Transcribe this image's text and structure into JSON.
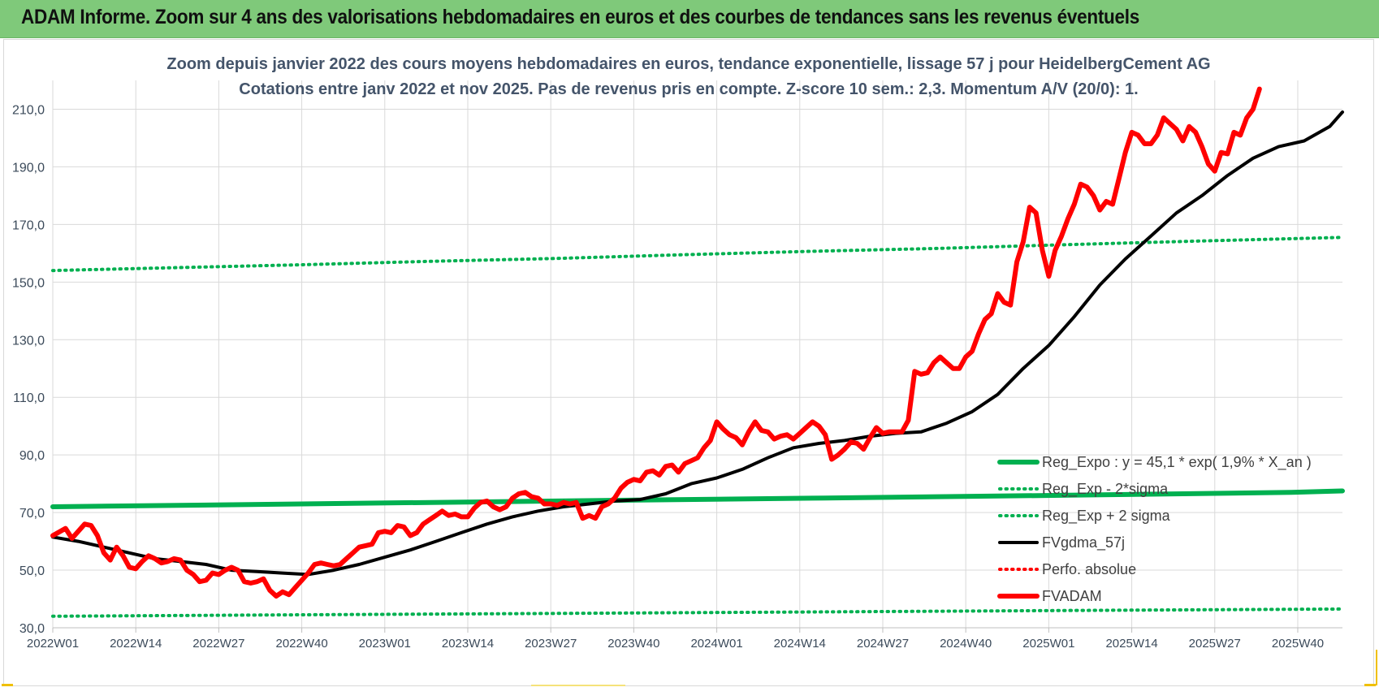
{
  "banner": {
    "title": "ADAM Informe. Zoom sur 4 ans des valorisations hebdomadaires en euros et des courbes de tendances sans les revenus éventuels"
  },
  "chart_data": {
    "type": "line",
    "title": "Zoom depuis janvier 2022 des cours moyens hebdomadaires en euros, tendance exponentielle, lissage 57 j pour HeidelbergCement AG",
    "subtitle": "Cotations entre janv 2022 et nov 2025. Pas de revenus pris en compte. Z-score 10 sem.: 2,3. Momentum A/V (20/0): 1.",
    "xlabel": "",
    "ylabel": "",
    "ylim": [
      30,
      220
    ],
    "x_range": [
      1,
      203
    ],
    "y_ticks": [
      "30,0",
      "50,0",
      "70,0",
      "90,0",
      "110,0",
      "130,0",
      "150,0",
      "170,0",
      "190,0",
      "210,0"
    ],
    "y_tick_values": [
      30,
      50,
      70,
      90,
      110,
      130,
      150,
      170,
      190,
      210
    ],
    "x_ticks": [
      "2022W01",
      "2022W14",
      "2022W27",
      "2022W40",
      "2023W01",
      "2023W14",
      "2023W27",
      "2023W40",
      "2024W01",
      "2024W14",
      "2024W27",
      "2024W40",
      "2025W01",
      "2025W14",
      "2025W27",
      "2025W40"
    ],
    "x_tick_weeks": [
      1,
      14,
      27,
      40,
      53,
      66,
      79,
      92,
      105,
      118,
      131,
      144,
      157,
      170,
      183,
      196
    ],
    "grid": "vertical and horizontal",
    "legend_position": "bottom-right",
    "series": [
      {
        "name": "Reg_Expo : y = 45,1 * exp( 1,9% * X_an )",
        "color": "#00b050",
        "style": "solid-thick",
        "points": [
          [
            1,
            72
          ],
          [
            40,
            73
          ],
          [
            80,
            74
          ],
          [
            120,
            75
          ],
          [
            160,
            76
          ],
          [
            195,
            77
          ],
          [
            203,
            77.5
          ]
        ]
      },
      {
        "name": "Reg_Exp - 2*sigma",
        "color": "#00b050",
        "style": "dotted",
        "points": [
          [
            1,
            34
          ],
          [
            40,
            34.5
          ],
          [
            80,
            35
          ],
          [
            120,
            35.5
          ],
          [
            160,
            36
          ],
          [
            203,
            36.5
          ]
        ]
      },
      {
        "name": "Reg_Exp + 2 sigma",
        "color": "#00b050",
        "style": "dotted",
        "points": [
          [
            1,
            154
          ],
          [
            20,
            155
          ],
          [
            40,
            156
          ],
          [
            60,
            157.2
          ],
          [
            80,
            158.2
          ],
          [
            100,
            159.5
          ],
          [
            120,
            160.7
          ],
          [
            140,
            161.7
          ],
          [
            160,
            163
          ],
          [
            180,
            164.2
          ],
          [
            203,
            165.5
          ]
        ]
      },
      {
        "name": "FVgdma_57j",
        "color": "#000000",
        "style": "solid",
        "points": [
          [
            1,
            61.5
          ],
          [
            5,
            60
          ],
          [
            9,
            58
          ],
          [
            13,
            56
          ],
          [
            17,
            54
          ],
          [
            21,
            53
          ],
          [
            25,
            52
          ],
          [
            29,
            50
          ],
          [
            33,
            49.5
          ],
          [
            37,
            49
          ],
          [
            41,
            48.5
          ],
          [
            45,
            50
          ],
          [
            49,
            52
          ],
          [
            53,
            54.5
          ],
          [
            57,
            57
          ],
          [
            61,
            60
          ],
          [
            65,
            63
          ],
          [
            69,
            66
          ],
          [
            73,
            68.5
          ],
          [
            77,
            70.5
          ],
          [
            81,
            72
          ],
          [
            85,
            73
          ],
          [
            89,
            74
          ],
          [
            93,
            74.5
          ],
          [
            97,
            76.5
          ],
          [
            101,
            80
          ],
          [
            105,
            82
          ],
          [
            109,
            85
          ],
          [
            113,
            89
          ],
          [
            117,
            92.5
          ],
          [
            121,
            94
          ],
          [
            125,
            95
          ],
          [
            129,
            96.5
          ],
          [
            133,
            97.5
          ],
          [
            137,
            98
          ],
          [
            141,
            101
          ],
          [
            145,
            105
          ],
          [
            149,
            111
          ],
          [
            153,
            120
          ],
          [
            157,
            128
          ],
          [
            161,
            138
          ],
          [
            165,
            149
          ],
          [
            169,
            158
          ],
          [
            173,
            166
          ],
          [
            177,
            174
          ],
          [
            181,
            180
          ],
          [
            185,
            187
          ],
          [
            189,
            193
          ],
          [
            193,
            197
          ],
          [
            197,
            199
          ],
          [
            201,
            204
          ],
          [
            203,
            209
          ]
        ]
      },
      {
        "name": "Perfo. absolue",
        "color": "#ff0000",
        "style": "dotted",
        "points": []
      },
      {
        "name": "FVADAM",
        "color": "#ff0000",
        "style": "solid-thick",
        "points": [
          [
            1,
            62
          ],
          [
            3,
            64.5
          ],
          [
            4,
            61
          ],
          [
            6,
            66
          ],
          [
            7,
            65.5
          ],
          [
            8,
            62
          ],
          [
            9,
            56
          ],
          [
            10,
            53.5
          ],
          [
            11,
            58
          ],
          [
            12,
            55
          ],
          [
            13,
            51
          ],
          [
            14,
            50.5
          ],
          [
            15,
            53
          ],
          [
            16,
            55
          ],
          [
            17,
            54
          ],
          [
            18,
            52.5
          ],
          [
            19,
            53
          ],
          [
            20,
            54
          ],
          [
            21,
            53.5
          ],
          [
            22,
            50
          ],
          [
            23,
            48.5
          ],
          [
            24,
            46
          ],
          [
            25,
            46.5
          ],
          [
            26,
            49
          ],
          [
            27,
            48.5
          ],
          [
            28,
            50
          ],
          [
            29,
            51
          ],
          [
            30,
            50
          ],
          [
            31,
            46
          ],
          [
            32,
            45.5
          ],
          [
            33,
            46
          ],
          [
            34,
            47
          ],
          [
            35,
            43
          ],
          [
            36,
            41
          ],
          [
            37,
            42.5
          ],
          [
            38,
            41.5
          ],
          [
            39,
            44
          ],
          [
            40,
            46.5
          ],
          [
            41,
            49
          ],
          [
            42,
            52
          ],
          [
            43,
            52.5
          ],
          [
            44,
            52
          ],
          [
            45,
            51.5
          ],
          [
            46,
            52
          ],
          [
            47,
            54
          ],
          [
            48,
            56
          ],
          [
            49,
            58
          ],
          [
            50,
            58.5
          ],
          [
            51,
            59
          ],
          [
            52,
            63
          ],
          [
            53,
            63.5
          ],
          [
            54,
            63
          ],
          [
            55,
            65.5
          ],
          [
            56,
            65
          ],
          [
            57,
            62
          ],
          [
            58,
            63
          ],
          [
            59,
            66
          ],
          [
            60,
            67.5
          ],
          [
            61,
            69
          ],
          [
            62,
            70.5
          ],
          [
            63,
            69
          ],
          [
            64,
            69.5
          ],
          [
            65,
            68.5
          ],
          [
            66,
            68.5
          ],
          [
            67,
            71.5
          ],
          [
            68,
            73.5
          ],
          [
            69,
            74
          ],
          [
            70,
            72
          ],
          [
            71,
            71
          ],
          [
            72,
            72
          ],
          [
            73,
            75
          ],
          [
            74,
            76.5
          ],
          [
            75,
            77
          ],
          [
            76,
            75.5
          ],
          [
            77,
            75
          ],
          [
            78,
            73
          ],
          [
            79,
            73
          ],
          [
            80,
            72.5
          ],
          [
            81,
            73.5
          ],
          [
            82,
            73
          ],
          [
            83,
            73.5
          ],
          [
            84,
            68
          ],
          [
            85,
            69
          ],
          [
            86,
            68
          ],
          [
            87,
            72
          ],
          [
            88,
            73
          ],
          [
            89,
            75
          ],
          [
            90,
            78.5
          ],
          [
            91,
            80.5
          ],
          [
            92,
            81.5
          ],
          [
            93,
            81
          ],
          [
            94,
            84
          ],
          [
            95,
            84.5
          ],
          [
            96,
            83
          ],
          [
            97,
            86
          ],
          [
            98,
            86.5
          ],
          [
            99,
            84
          ],
          [
            100,
            87
          ],
          [
            101,
            88
          ],
          [
            102,
            89
          ],
          [
            103,
            92.5
          ],
          [
            104,
            95
          ],
          [
            105,
            101.5
          ],
          [
            106,
            99
          ],
          [
            107,
            97
          ],
          [
            108,
            96
          ],
          [
            109,
            93.5
          ],
          [
            110,
            98
          ],
          [
            111,
            101.5
          ],
          [
            112,
            98.5
          ],
          [
            113,
            98
          ],
          [
            114,
            95.5
          ],
          [
            115,
            96.5
          ],
          [
            116,
            97
          ],
          [
            117,
            95.5
          ],
          [
            118,
            97.5
          ],
          [
            119,
            99.5
          ],
          [
            120,
            101.5
          ],
          [
            121,
            100
          ],
          [
            122,
            97
          ],
          [
            123,
            88.5
          ],
          [
            124,
            90
          ],
          [
            125,
            92
          ],
          [
            126,
            94.5
          ],
          [
            127,
            94
          ],
          [
            128,
            92
          ],
          [
            129,
            96
          ],
          [
            130,
            99.5
          ],
          [
            131,
            97.5
          ],
          [
            132,
            98
          ],
          [
            133,
            98
          ],
          [
            134,
            98
          ],
          [
            135,
            102
          ],
          [
            136,
            119
          ],
          [
            137,
            118
          ],
          [
            138,
            118.5
          ],
          [
            139,
            122
          ],
          [
            140,
            124
          ],
          [
            141,
            122
          ],
          [
            142,
            120
          ],
          [
            143,
            120
          ],
          [
            144,
            124
          ],
          [
            145,
            126
          ],
          [
            146,
            132
          ],
          [
            147,
            137
          ],
          [
            148,
            139
          ],
          [
            149,
            146
          ],
          [
            150,
            143
          ],
          [
            151,
            142
          ],
          [
            152,
            157
          ],
          [
            153,
            164
          ],
          [
            154,
            176
          ],
          [
            155,
            174
          ],
          [
            156,
            161
          ],
          [
            157,
            152
          ],
          [
            158,
            161
          ],
          [
            159,
            166
          ],
          [
            160,
            172
          ],
          [
            161,
            177
          ],
          [
            162,
            184
          ],
          [
            163,
            183
          ],
          [
            164,
            180
          ],
          [
            165,
            175
          ],
          [
            166,
            178
          ],
          [
            167,
            177
          ],
          [
            168,
            186
          ],
          [
            169,
            195
          ],
          [
            170,
            202
          ],
          [
            171,
            201
          ],
          [
            172,
            198
          ],
          [
            173,
            198
          ],
          [
            174,
            201
          ],
          [
            175,
            207
          ],
          [
            176,
            205
          ],
          [
            177,
            203
          ],
          [
            178,
            199
          ],
          [
            179,
            204
          ],
          [
            180,
            202
          ],
          [
            181,
            197
          ],
          [
            182,
            191
          ],
          [
            183,
            188.5
          ],
          [
            184,
            195
          ],
          [
            185,
            194.5
          ],
          [
            186,
            202
          ],
          [
            187,
            201
          ],
          [
            188,
            207
          ],
          [
            189,
            210
          ],
          [
            190,
            217
          ]
        ]
      }
    ]
  }
}
